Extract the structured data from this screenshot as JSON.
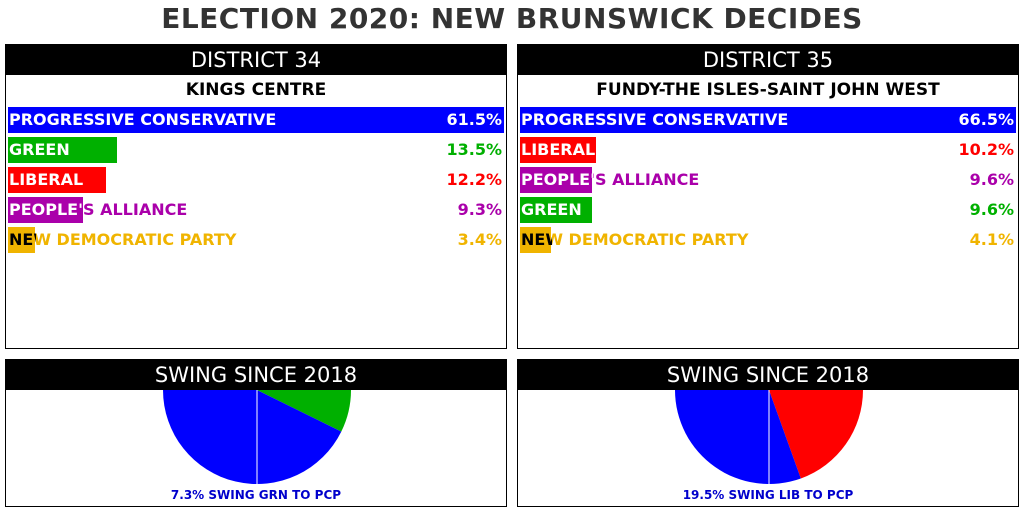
{
  "title": "ELECTION 2020: NEW BRUNSWICK DECIDES",
  "districts": [
    {
      "header": "DISTRICT 34",
      "name": "KINGS CENTRE",
      "results": [
        {
          "party": "PROGRESSIVE CONSERVATIVE",
          "value": 61.5,
          "label": "61.5%",
          "color": "#0000ff"
        },
        {
          "party": "GREEN",
          "value": 13.5,
          "label": "13.5%",
          "color": "#00b000"
        },
        {
          "party": "LIBERAL",
          "value": 12.2,
          "label": "12.2%",
          "color": "#ff0000"
        },
        {
          "party": "PEOPLE'S ALLIANCE",
          "value": 9.3,
          "label": "9.3%",
          "color": "#aa00aa"
        },
        {
          "party": "NEW DEMOCRATIC PARTY",
          "value": 3.4,
          "label": "3.4%",
          "color": "#f0b400"
        }
      ]
    },
    {
      "header": "DISTRICT 35",
      "name": "FUNDY-THE ISLES-SAINT JOHN WEST",
      "results": [
        {
          "party": "PROGRESSIVE CONSERVATIVE",
          "value": 66.5,
          "label": "66.5%",
          "color": "#0000ff"
        },
        {
          "party": "LIBERAL",
          "value": 10.2,
          "label": "10.2%",
          "color": "#ff0000"
        },
        {
          "party": "PEOPLE'S ALLIANCE",
          "value": 9.6,
          "label": "9.6%",
          "color": "#aa00aa"
        },
        {
          "party": "GREEN",
          "value": 9.6,
          "label": "9.6%",
          "color": "#00b000"
        },
        {
          "party": "NEW DEMOCRATIC PARTY",
          "value": 4.1,
          "label": "4.1%",
          "color": "#f0b400"
        }
      ]
    }
  ],
  "swings": [
    {
      "header": "SWING SINCE 2018",
      "text": "7.3% SWING GRN TO PCP",
      "swing": 7.3,
      "from_color": "#00b000",
      "to_color": "#0000ff"
    },
    {
      "header": "SWING SINCE 2018",
      "text": "19.5% SWING LIB TO PCP",
      "swing": 19.5,
      "from_color": "#ff0000",
      "to_color": "#0000ff"
    }
  ],
  "chart_data": [
    {
      "type": "bar",
      "title": "DISTRICT 34 - KINGS CENTRE",
      "categories": [
        "PROGRESSIVE CONSERVATIVE",
        "GREEN",
        "LIBERAL",
        "PEOPLE'S ALLIANCE",
        "NEW DEMOCRATIC PARTY"
      ],
      "values": [
        61.5,
        13.5,
        12.2,
        9.3,
        3.4
      ],
      "ylim": [
        0,
        61.5
      ]
    },
    {
      "type": "bar",
      "title": "DISTRICT 35 - FUNDY-THE ISLES-SAINT JOHN WEST",
      "categories": [
        "PROGRESSIVE CONSERVATIVE",
        "LIBERAL",
        "PEOPLE'S ALLIANCE",
        "GREEN",
        "NEW DEMOCRATIC PARTY"
      ],
      "values": [
        66.5,
        10.2,
        9.6,
        9.6,
        4.1
      ],
      "ylim": [
        0,
        66.5
      ]
    },
    {
      "type": "pie",
      "title": "SWING SINCE 2018",
      "swing": 7.3,
      "from": "GRN",
      "to": "PCP"
    },
    {
      "type": "pie",
      "title": "SWING SINCE 2018",
      "swing": 19.5,
      "from": "LIB",
      "to": "PCP"
    }
  ]
}
